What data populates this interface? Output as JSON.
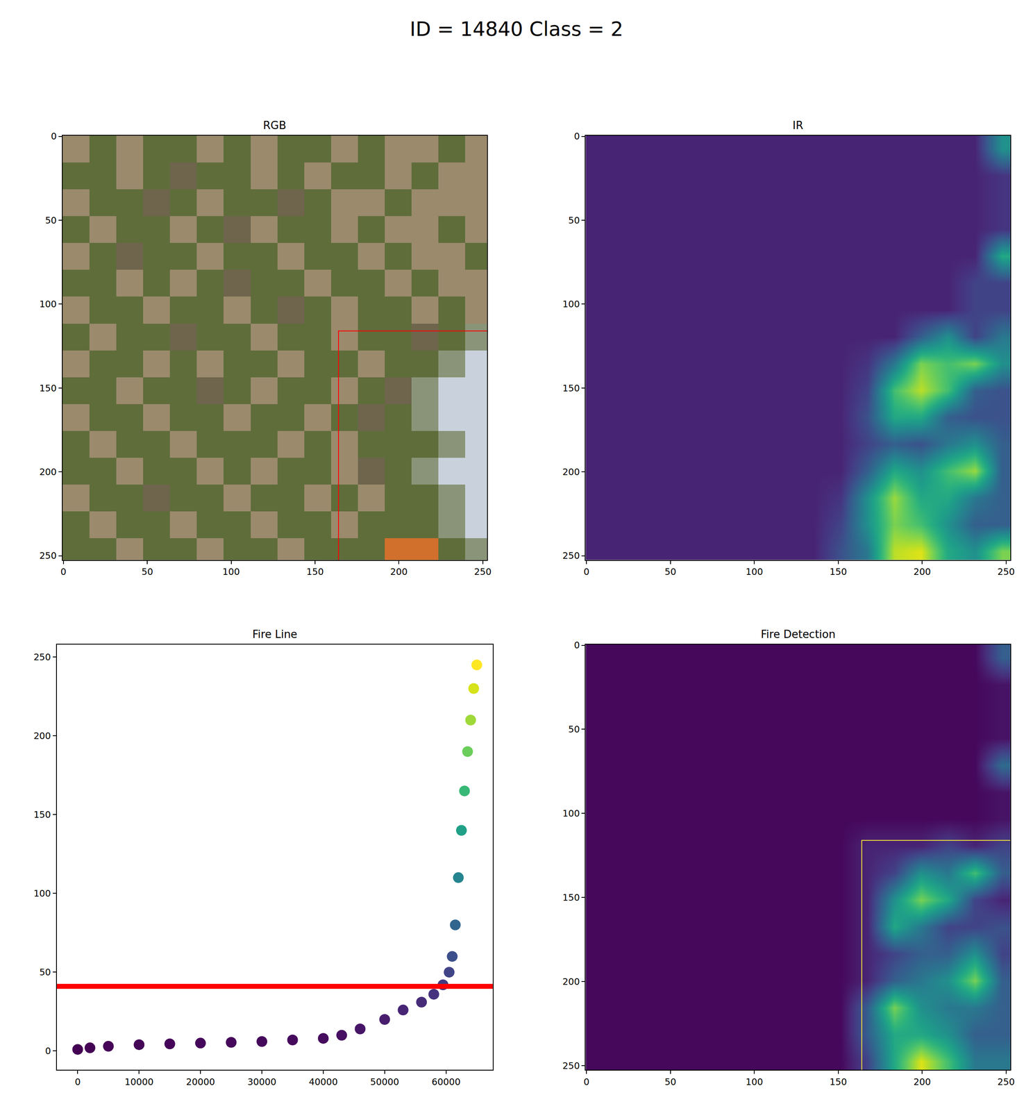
{
  "title": "ID = 14840 Class = 2",
  "chart_data": [
    {
      "type": "image",
      "title": "RGB",
      "x0": 7.5,
      "dx": 16,
      "y0": 7.5,
      "dy": 16,
      "palette": [
        "#5f6d3b",
        "#9b8a6c",
        "#6e654c",
        "#c9d2dc",
        "#d0702c",
        "#8a9478"
      ],
      "pixels": [
        [
          1,
          0,
          1,
          0,
          0,
          1,
          0,
          1,
          0,
          0,
          1,
          0,
          1,
          1,
          0,
          1
        ],
        [
          0,
          0,
          1,
          0,
          2,
          0,
          0,
          1,
          0,
          1,
          0,
          0,
          1,
          0,
          1,
          1
        ],
        [
          1,
          0,
          0,
          2,
          0,
          1,
          0,
          0,
          2,
          0,
          1,
          1,
          0,
          1,
          1,
          1
        ],
        [
          0,
          1,
          0,
          0,
          1,
          0,
          2,
          1,
          0,
          0,
          1,
          0,
          1,
          1,
          0,
          1
        ],
        [
          1,
          0,
          2,
          0,
          0,
          1,
          0,
          0,
          1,
          0,
          0,
          1,
          0,
          1,
          1,
          0
        ],
        [
          0,
          0,
          1,
          0,
          1,
          0,
          2,
          0,
          0,
          1,
          0,
          0,
          1,
          0,
          1,
          1
        ],
        [
          1,
          0,
          0,
          1,
          0,
          0,
          1,
          0,
          2,
          0,
          1,
          0,
          0,
          1,
          0,
          1
        ],
        [
          0,
          1,
          0,
          0,
          2,
          0,
          0,
          1,
          0,
          0,
          1,
          0,
          0,
          2,
          0,
          5
        ],
        [
          1,
          0,
          0,
          1,
          0,
          1,
          0,
          0,
          1,
          0,
          0,
          1,
          0,
          0,
          5,
          3
        ],
        [
          0,
          0,
          1,
          0,
          0,
          2,
          0,
          1,
          0,
          0,
          1,
          0,
          2,
          5,
          3,
          3
        ],
        [
          1,
          0,
          0,
          1,
          0,
          0,
          1,
          0,
          0,
          1,
          0,
          2,
          0,
          5,
          3,
          3
        ],
        [
          0,
          1,
          0,
          0,
          1,
          0,
          0,
          0,
          1,
          0,
          1,
          0,
          0,
          0,
          5,
          3
        ],
        [
          0,
          0,
          1,
          0,
          0,
          1,
          0,
          1,
          0,
          0,
          1,
          2,
          0,
          5,
          3,
          3
        ],
        [
          1,
          0,
          0,
          2,
          0,
          0,
          1,
          0,
          0,
          1,
          0,
          1,
          0,
          0,
          5,
          3
        ],
        [
          0,
          1,
          0,
          0,
          1,
          0,
          0,
          1,
          0,
          0,
          1,
          0,
          0,
          0,
          5,
          3
        ],
        [
          0,
          0,
          1,
          0,
          0,
          1,
          0,
          0,
          1,
          0,
          0,
          0,
          4,
          4,
          0,
          5
        ]
      ],
      "xlim": [
        -0.5,
        252.5
      ],
      "ylim": [
        252.5,
        -0.5
      ],
      "xticks": [
        0,
        50,
        100,
        150,
        200,
        250
      ],
      "yticks": [
        0,
        50,
        100,
        150,
        200,
        250
      ],
      "box": {
        "x": [
          164,
          253
        ],
        "y": [
          116,
          253
        ],
        "color": "#ff0000"
      }
    },
    {
      "type": "heatmap",
      "title": "IR",
      "x0": 7.5,
      "dx": 16,
      "y0": 7.5,
      "dy": 16,
      "zlim": [
        0,
        1
      ],
      "cells": [
        [
          0.1,
          0.1,
          0.1,
          0.1,
          0.1,
          0.1,
          0.1,
          0.1,
          0.1,
          0.1,
          0.1,
          0.1,
          0.1,
          0.1,
          0.1,
          0.5
        ],
        [
          0.1,
          0.1,
          0.1,
          0.1,
          0.1,
          0.1,
          0.1,
          0.1,
          0.1,
          0.1,
          0.1,
          0.1,
          0.1,
          0.1,
          0.1,
          0.15
        ],
        [
          0.1,
          0.1,
          0.1,
          0.1,
          0.1,
          0.1,
          0.1,
          0.1,
          0.1,
          0.1,
          0.1,
          0.1,
          0.1,
          0.1,
          0.1,
          0.15
        ],
        [
          0.1,
          0.1,
          0.1,
          0.1,
          0.1,
          0.1,
          0.1,
          0.1,
          0.1,
          0.1,
          0.1,
          0.1,
          0.1,
          0.1,
          0.1,
          0.15
        ],
        [
          0.1,
          0.1,
          0.1,
          0.1,
          0.1,
          0.1,
          0.1,
          0.1,
          0.1,
          0.1,
          0.1,
          0.1,
          0.1,
          0.1,
          0.1,
          0.6
        ],
        [
          0.1,
          0.1,
          0.1,
          0.1,
          0.1,
          0.1,
          0.1,
          0.1,
          0.1,
          0.1,
          0.1,
          0.1,
          0.1,
          0.1,
          0.2,
          0.2
        ],
        [
          0.1,
          0.1,
          0.1,
          0.1,
          0.1,
          0.1,
          0.1,
          0.1,
          0.1,
          0.1,
          0.1,
          0.1,
          0.1,
          0.1,
          0.2,
          0.2
        ],
        [
          0.1,
          0.1,
          0.1,
          0.1,
          0.1,
          0.1,
          0.1,
          0.1,
          0.1,
          0.1,
          0.1,
          0.1,
          0.3,
          0.5,
          0.2,
          0.4
        ],
        [
          0.1,
          0.1,
          0.1,
          0.1,
          0.1,
          0.1,
          0.1,
          0.1,
          0.1,
          0.1,
          0.15,
          0.4,
          0.8,
          0.7,
          0.8,
          0.5
        ],
        [
          0.1,
          0.1,
          0.1,
          0.1,
          0.1,
          0.1,
          0.1,
          0.1,
          0.1,
          0.1,
          0.2,
          0.7,
          0.9,
          0.7,
          0.3,
          0.25
        ],
        [
          0.1,
          0.1,
          0.1,
          0.1,
          0.1,
          0.1,
          0.1,
          0.1,
          0.1,
          0.1,
          0.25,
          0.6,
          0.6,
          0.3,
          0.25,
          0.25
        ],
        [
          0.1,
          0.1,
          0.1,
          0.1,
          0.1,
          0.1,
          0.1,
          0.1,
          0.1,
          0.1,
          0.2,
          0.3,
          0.25,
          0.4,
          0.5,
          0.3
        ],
        [
          0.1,
          0.1,
          0.1,
          0.1,
          0.1,
          0.1,
          0.1,
          0.1,
          0.1,
          0.1,
          0.3,
          0.6,
          0.5,
          0.7,
          0.85,
          0.3
        ],
        [
          0.1,
          0.1,
          0.1,
          0.1,
          0.1,
          0.1,
          0.1,
          0.1,
          0.1,
          0.15,
          0.5,
          0.85,
          0.6,
          0.6,
          0.4,
          0.3
        ],
        [
          0.1,
          0.1,
          0.1,
          0.1,
          0.1,
          0.1,
          0.1,
          0.1,
          0.1,
          0.2,
          0.5,
          0.8,
          0.7,
          0.5,
          0.3,
          0.3
        ],
        [
          0.1,
          0.1,
          0.1,
          0.1,
          0.1,
          0.1,
          0.1,
          0.1,
          0.1,
          0.25,
          0.4,
          0.9,
          0.95,
          0.6,
          0.5,
          0.8
        ]
      ],
      "xlim": [
        -0.5,
        252.5
      ],
      "ylim": [
        252.5,
        -0.5
      ],
      "xticks": [
        0,
        50,
        100,
        150,
        200,
        250
      ],
      "yticks": [
        0,
        50,
        100,
        150,
        200,
        250
      ]
    },
    {
      "type": "scatter",
      "title": "Fire Line",
      "x": [
        0,
        2000,
        5000,
        10000,
        15000,
        20000,
        25000,
        30000,
        35000,
        40000,
        43000,
        46000,
        50000,
        53000,
        56000,
        58000,
        59500,
        60500,
        61000,
        61500,
        62000,
        62500,
        63000,
        63500,
        64000,
        64500,
        65000
      ],
      "values": [
        1,
        2,
        3,
        4,
        4.5,
        5,
        5.5,
        6,
        7,
        8,
        10,
        14,
        20,
        26,
        31,
        36,
        42,
        50,
        60,
        80,
        110,
        140,
        165,
        190,
        210,
        230,
        245
      ],
      "xlim": [
        -3400,
        67600
      ],
      "ylim": [
        -12,
        258
      ],
      "xticks": [
        0,
        10000,
        20000,
        30000,
        40000,
        50000,
        60000
      ],
      "yticks": [
        0,
        50,
        100,
        150,
        200,
        250
      ],
      "threshold": {
        "value": 41,
        "color": "#ff0000"
      }
    },
    {
      "type": "heatmap",
      "title": "Fire Detection",
      "x0": 7.5,
      "dx": 16,
      "y0": 7.5,
      "dy": 16,
      "zlim": [
        0,
        1
      ],
      "cells": [
        [
          0.02,
          0.02,
          0.02,
          0.02,
          0.02,
          0.02,
          0.02,
          0.02,
          0.02,
          0.02,
          0.02,
          0.02,
          0.02,
          0.02,
          0.02,
          0.3
        ],
        [
          0.02,
          0.02,
          0.02,
          0.02,
          0.02,
          0.02,
          0.02,
          0.02,
          0.02,
          0.02,
          0.02,
          0.02,
          0.02,
          0.02,
          0.02,
          0.05
        ],
        [
          0.02,
          0.02,
          0.02,
          0.02,
          0.02,
          0.02,
          0.02,
          0.02,
          0.02,
          0.02,
          0.02,
          0.02,
          0.02,
          0.02,
          0.02,
          0.05
        ],
        [
          0.02,
          0.02,
          0.02,
          0.02,
          0.02,
          0.02,
          0.02,
          0.02,
          0.02,
          0.02,
          0.02,
          0.02,
          0.02,
          0.02,
          0.02,
          0.05
        ],
        [
          0.02,
          0.02,
          0.02,
          0.02,
          0.02,
          0.02,
          0.02,
          0.02,
          0.02,
          0.02,
          0.02,
          0.02,
          0.02,
          0.02,
          0.02,
          0.35
        ],
        [
          0.02,
          0.02,
          0.02,
          0.02,
          0.02,
          0.02,
          0.02,
          0.02,
          0.02,
          0.02,
          0.02,
          0.02,
          0.02,
          0.02,
          0.02,
          0.05
        ],
        [
          0.02,
          0.02,
          0.02,
          0.02,
          0.02,
          0.02,
          0.02,
          0.02,
          0.02,
          0.02,
          0.02,
          0.02,
          0.02,
          0.02,
          0.02,
          0.05
        ],
        [
          0.02,
          0.02,
          0.02,
          0.02,
          0.02,
          0.02,
          0.02,
          0.02,
          0.02,
          0.02,
          0.1,
          0.1,
          0.1,
          0.2,
          0.1,
          0.2
        ],
        [
          0.02,
          0.02,
          0.02,
          0.02,
          0.02,
          0.02,
          0.02,
          0.02,
          0.02,
          0.02,
          0.1,
          0.2,
          0.5,
          0.4,
          0.7,
          0.3
        ],
        [
          0.02,
          0.02,
          0.02,
          0.02,
          0.02,
          0.02,
          0.02,
          0.02,
          0.02,
          0.02,
          0.1,
          0.5,
          0.8,
          0.6,
          0.2,
          0.1
        ],
        [
          0.02,
          0.02,
          0.02,
          0.02,
          0.02,
          0.02,
          0.02,
          0.02,
          0.02,
          0.02,
          0.1,
          0.6,
          0.4,
          0.2,
          0.2,
          0.25
        ],
        [
          0.02,
          0.02,
          0.02,
          0.02,
          0.02,
          0.02,
          0.02,
          0.02,
          0.02,
          0.02,
          0.1,
          0.2,
          0.3,
          0.3,
          0.5,
          0.2
        ],
        [
          0.02,
          0.02,
          0.02,
          0.02,
          0.02,
          0.02,
          0.02,
          0.02,
          0.02,
          0.02,
          0.1,
          0.3,
          0.4,
          0.5,
          0.8,
          0.3
        ],
        [
          0.02,
          0.02,
          0.02,
          0.02,
          0.02,
          0.02,
          0.02,
          0.02,
          0.02,
          0.02,
          0.3,
          0.8,
          0.5,
          0.4,
          0.4,
          0.3
        ],
        [
          0.02,
          0.02,
          0.02,
          0.02,
          0.02,
          0.02,
          0.02,
          0.02,
          0.02,
          0.02,
          0.3,
          0.6,
          0.6,
          0.5,
          0.3,
          0.3
        ],
        [
          0.02,
          0.02,
          0.02,
          0.02,
          0.02,
          0.02,
          0.02,
          0.02,
          0.02,
          0.02,
          0.2,
          0.6,
          0.95,
          0.7,
          0.4,
          0.4
        ]
      ],
      "xlim": [
        -0.5,
        252.5
      ],
      "ylim": [
        252.5,
        -0.5
      ],
      "xticks": [
        0,
        50,
        100,
        150,
        200,
        250
      ],
      "yticks": [
        0,
        50,
        100,
        150,
        200,
        250
      ],
      "box": {
        "x": [
          164,
          253
        ],
        "y": [
          116,
          253
        ],
        "color": "#f2e43a"
      }
    }
  ]
}
